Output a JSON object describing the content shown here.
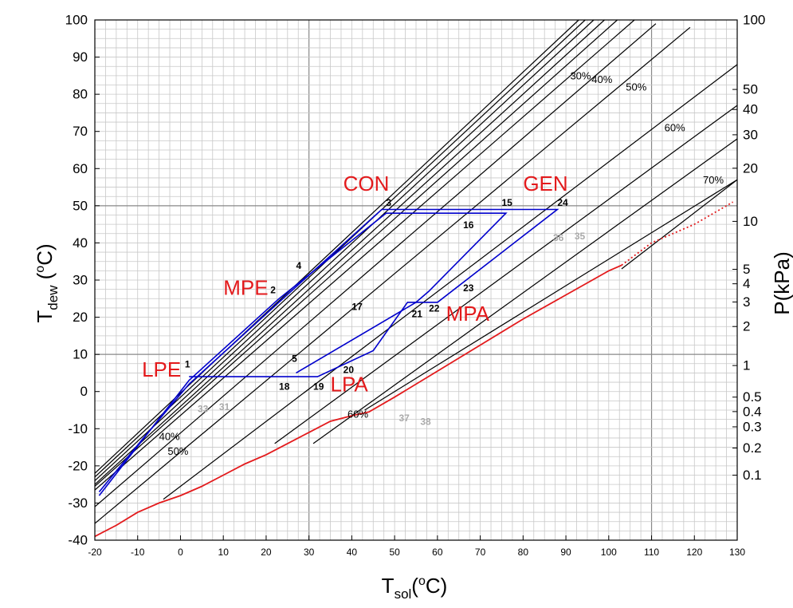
{
  "chart_data": {
    "type": "line",
    "xlabel": {
      "main": "T",
      "sub": "sol",
      "tail": "(",
      "sup": "o",
      "end": "C)"
    },
    "ylabel": {
      "main": "T",
      "sub": "dew",
      "tail": " (",
      "sup": "o",
      "end": "C)"
    },
    "y2label": "P(kPa)",
    "xlim": [
      -20,
      130
    ],
    "ylim": [
      -40,
      100
    ],
    "grid": true,
    "xticks": [
      "-20",
      "-10",
      "0",
      "10",
      "20",
      "30",
      "40",
      "50",
      "60",
      "70",
      "80",
      "90",
      "100",
      "110",
      "120",
      "130"
    ],
    "yticks": [
      "-40",
      "-30",
      "-20",
      "-10",
      "0",
      "10",
      "20",
      "30",
      "40",
      "50",
      "60",
      "70",
      "80",
      "90",
      "100"
    ],
    "y2ticks": [
      {
        "label": "100",
        "t": 100
      },
      {
        "label": "50",
        "t": 81.3
      },
      {
        "label": "40",
        "t": 75.9
      },
      {
        "label": "30",
        "t": 69.1
      },
      {
        "label": "20",
        "t": 60.1
      },
      {
        "label": "10",
        "t": 45.8
      },
      {
        "label": "5",
        "t": 32.9
      },
      {
        "label": "4",
        "t": 29.0
      },
      {
        "label": "3",
        "t": 24.1
      },
      {
        "label": "2",
        "t": 17.5
      },
      {
        "label": "1",
        "t": 7.0
      },
      {
        "label": "0.5",
        "t": -1.5
      },
      {
        "label": "0.4",
        "t": -5.4
      },
      {
        "label": "0.3",
        "t": -9.5
      },
      {
        "label": "0.2",
        "t": -15.2
      },
      {
        "label": "0.1",
        "t": -22.5
      }
    ],
    "isosteres": [
      [
        [
          -20,
          -22
        ],
        [
          93,
          100
        ]
      ],
      [
        [
          -20,
          -23
        ],
        [
          94.5,
          100
        ]
      ],
      [
        [
          -20,
          -24
        ],
        [
          96.5,
          100
        ]
      ],
      [
        [
          -20,
          -25
        ],
        [
          99,
          100
        ]
      ],
      [
        [
          -20,
          -25.5
        ],
        [
          102,
          100
        ]
      ],
      [
        [
          -20,
          -26.5
        ],
        [
          106,
          100
        ]
      ],
      [
        [
          -20,
          -31
        ],
        [
          111,
          99
        ]
      ],
      [
        [
          -20,
          -35.5
        ],
        [
          119,
          98
        ]
      ],
      [
        [
          -4,
          -29
        ],
        [
          130,
          88
        ]
      ],
      [
        [
          22,
          -14
        ],
        [
          130,
          77
        ]
      ],
      [
        [
          31,
          -14
        ],
        [
          130,
          68
        ]
      ],
      [
        [
          43,
          -5
        ],
        [
          130,
          57
        ]
      ],
      [
        [
          103,
          33
        ],
        [
          130,
          57
        ]
      ]
    ],
    "isostere_labels": [
      {
        "text": "30%",
        "x": 91,
        "y": 84
      },
      {
        "text": "40%",
        "x": 96,
        "y": 83
      },
      {
        "text": "50%",
        "x": 104,
        "y": 81
      },
      {
        "text": "60%",
        "x": 113,
        "y": 70
      },
      {
        "text": "70%",
        "x": 122,
        "y": 56
      },
      {
        "text": "40%",
        "x": -5,
        "y": -13
      },
      {
        "text": "50%",
        "x": -3,
        "y": -17
      },
      {
        "text": "60%",
        "x": 39,
        "y": -7
      }
    ],
    "series": [
      {
        "color": "#0000cc",
        "x": [
          -19,
          -9,
          2,
          22,
          47,
          76,
          88,
          60,
          54,
          53,
          45,
          32,
          26,
          24,
          2
        ],
        "y": [
          -27,
          -13,
          2,
          23,
          49,
          49,
          49,
          24,
          24,
          24,
          11,
          4,
          4,
          4,
          4
        ]
      },
      {
        "color": "#0000cc",
        "x": [
          -19,
          2,
          23,
          48,
          76,
          58,
          55,
          27
        ],
        "y": [
          -28,
          3,
          25,
          48,
          48,
          27,
          24,
          5
        ]
      },
      {
        "color": "#e31a1c",
        "x": [
          -20,
          -15,
          -10,
          -5,
          0,
          5,
          10,
          15,
          20,
          25,
          30,
          35,
          40,
          44,
          50,
          60,
          70,
          80,
          90,
          100,
          103
        ],
        "y": [
          -39,
          -36,
          -32.5,
          -30,
          -28,
          -25.5,
          -22.5,
          -19.5,
          -17,
          -14,
          -11,
          -8,
          -6.5,
          -5.5,
          -1.5,
          5.5,
          12.5,
          19.5,
          26,
          32.5,
          34
        ]
      },
      {
        "color": "#e31a1c",
        "style": "dotted",
        "x": [
          103,
          110,
          120,
          129
        ],
        "y": [
          34,
          40,
          45,
          51
        ]
      }
    ],
    "components": [
      {
        "text": "CON",
        "x": 38,
        "y": 54
      },
      {
        "text": "GEN",
        "x": 80,
        "y": 54
      },
      {
        "text": "MPE",
        "x": 10,
        "y": 26
      },
      {
        "text": "LPE",
        "x": -9,
        "y": 4
      },
      {
        "text": "MPA",
        "x": 62,
        "y": 19
      },
      {
        "text": "LPA",
        "x": 35,
        "y": 0
      }
    ],
    "points_black": [
      {
        "text": "1",
        "x": 1,
        "y": 6.5
      },
      {
        "text": "2",
        "x": 21,
        "y": 26.5
      },
      {
        "text": "3",
        "x": 48,
        "y": 50
      },
      {
        "text": "4",
        "x": 27,
        "y": 33
      },
      {
        "text": "5",
        "x": 26,
        "y": 8
      },
      {
        "text": "15",
        "x": 75,
        "y": 50
      },
      {
        "text": "16",
        "x": 66,
        "y": 44
      },
      {
        "text": "17",
        "x": 40,
        "y": 22
      },
      {
        "text": "18",
        "x": 23,
        "y": 0.5
      },
      {
        "text": "19",
        "x": 31,
        "y": 0.5
      },
      {
        "text": "20",
        "x": 38,
        "y": 5
      },
      {
        "text": "21",
        "x": 54,
        "y": 20
      },
      {
        "text": "22",
        "x": 58,
        "y": 21.5
      },
      {
        "text": "23",
        "x": 66,
        "y": 27
      },
      {
        "text": "24",
        "x": 88,
        "y": 50
      }
    ],
    "points_gray": [
      {
        "text": "33",
        "x": 4,
        "y": -5.5
      },
      {
        "text": "31",
        "x": 9,
        "y": -5
      },
      {
        "text": "36",
        "x": 87,
        "y": 40.5
      },
      {
        "text": "35",
        "x": 92,
        "y": 41
      },
      {
        "text": "37",
        "x": 51,
        "y": -8
      },
      {
        "text": "38",
        "x": 56,
        "y": -9
      }
    ]
  }
}
